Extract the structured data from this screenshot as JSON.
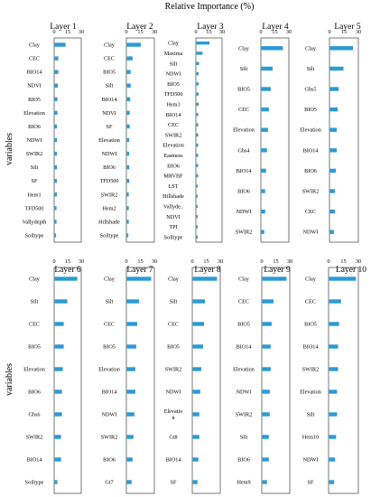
{
  "figure": {
    "top_label": "Relative Importance (%)",
    "y_label": "variables",
    "bar_color": "#2a9bd6"
  },
  "chart_data": [
    {
      "type": "bar",
      "orientation": "horizontal",
      "title": "Layer 1",
      "xlim": [
        0,
        30
      ],
      "xticks": [
        0,
        15,
        30
      ],
      "categories": [
        "Clay",
        "CEC",
        "BIO14",
        "NDVI",
        "BIO5",
        "Elevation",
        "BIO6",
        "NDWI",
        "SWIR2",
        "Silt",
        "SF",
        "Hem1",
        "TFD500",
        "Vallydepth",
        "Soiltype"
      ],
      "values": [
        12,
        4,
        4,
        3.5,
        3,
        3,
        2.5,
        2.5,
        2.5,
        2.5,
        2.5,
        2.5,
        2,
        2,
        1.5
      ]
    },
    {
      "type": "bar",
      "orientation": "horizontal",
      "title": "Layer 2",
      "xlim": [
        0,
        30
      ],
      "xticks": [
        0,
        15,
        30
      ],
      "categories": [
        "Clay",
        "CEC",
        "BIO5",
        "Silt",
        "BIO14",
        "NDVI",
        "SF",
        "Elevation",
        "NDWI",
        "BIO6",
        "TFD500",
        "SWIR2",
        "Hem2",
        "Hillshade",
        "Soiltype"
      ],
      "values": [
        15,
        6,
        4,
        4,
        3.5,
        3,
        3,
        2.5,
        2.5,
        2.5,
        2.5,
        2,
        2,
        2,
        1.5
      ]
    },
    {
      "type": "bar",
      "orientation": "horizontal",
      "title": "Layer 3",
      "xlim": [
        0,
        30
      ],
      "xticks": [
        0,
        15,
        30
      ],
      "categories": [
        "Clay",
        "Maxima",
        "Silt",
        "NDWI",
        "BIO5",
        "TFD500",
        "Hem3",
        "BIO14",
        "CEC",
        "SWIR2",
        "Elevation",
        "Eastness",
        "BIO6",
        "MRVBF",
        "LST",
        "Hillshade",
        "Vallyde..",
        "NDVI",
        "TPI",
        "Soiltype"
      ],
      "values": [
        15,
        7,
        3,
        2.5,
        2.5,
        2.5,
        2.5,
        2,
        2,
        2,
        2,
        2,
        2,
        2,
        1.5,
        1.5,
        1.5,
        1.5,
        1.5,
        1.5
      ]
    },
    {
      "type": "bar",
      "orientation": "horizontal",
      "title": "Layer 4",
      "xlim": [
        0,
        30
      ],
      "xticks": [
        0,
        15,
        30
      ],
      "categories": [
        "Clay",
        "Silt",
        "BIO5",
        "CEC",
        "Elevation",
        "Gbs4",
        "BIO14",
        "BIO6",
        "NDWI",
        "SWIR2"
      ],
      "values": [
        23,
        12,
        10,
        8,
        7,
        6,
        5,
        4,
        4,
        3
      ]
    },
    {
      "type": "bar",
      "orientation": "horizontal",
      "title": "Layer 5",
      "xlim": [
        0,
        30
      ],
      "xticks": [
        0,
        15,
        30
      ],
      "categories": [
        "Clay",
        "Silt",
        "Gbs5",
        "BIO5",
        "Elevation",
        "BIO14",
        "BIO6",
        "SWIR2",
        "CEC",
        "NDWI"
      ],
      "values": [
        24,
        14,
        9,
        8,
        7,
        7,
        6,
        5,
        5,
        4
      ]
    },
    {
      "type": "bar",
      "orientation": "horizontal",
      "title": "Layer 6",
      "xlim": [
        0,
        30
      ],
      "xticks": [
        0,
        15,
        30
      ],
      "categories": [
        "Clay",
        "Silt",
        "CEC",
        "BIO5",
        "Elevation",
        "BIO6",
        "Gbs6",
        "SWIR2",
        "BIO14",
        "Soiltype"
      ],
      "values": [
        25,
        14,
        10,
        10,
        9,
        8,
        8,
        7,
        7,
        3
      ]
    },
    {
      "type": "bar",
      "orientation": "horizontal",
      "title": "Layer 7",
      "xlim": [
        0,
        30
      ],
      "xticks": [
        0,
        15,
        30
      ],
      "categories": [
        "Clay",
        "Silt",
        "CEC",
        "BIO5",
        "Elevation",
        "BIO14",
        "NDWI",
        "SWIR2",
        "BIO6",
        "Gt7"
      ],
      "values": [
        26,
        13,
        11,
        10,
        9,
        9,
        8,
        7,
        6,
        5
      ]
    },
    {
      "type": "bar",
      "orientation": "horizontal",
      "title": "Layer 8",
      "xlim": [
        0,
        30
      ],
      "xticks": [
        0,
        15,
        30
      ],
      "categories": [
        "Clay",
        "Silt",
        "CEC",
        "BIO5",
        "SWIR2",
        "NDWI",
        "Elevatio\nn",
        "Gt8",
        "BIO14",
        "SF"
      ],
      "values": [
        26,
        13,
        12,
        11,
        9,
        8,
        7,
        7,
        6,
        5
      ]
    },
    {
      "type": "bar",
      "orientation": "horizontal",
      "title": "Layer 9",
      "xlim": [
        0,
        30
      ],
      "xticks": [
        0,
        15,
        30
      ],
      "categories": [
        "Clay",
        "CEC",
        "BIO5",
        "BIO14",
        "Elevation",
        "NDWI",
        "SWIR2",
        "Silt",
        "BIO6",
        "Hem9"
      ],
      "values": [
        26,
        12,
        10,
        9,
        9,
        8,
        8,
        7,
        7,
        5
      ]
    },
    {
      "type": "bar",
      "orientation": "horizontal",
      "title": "Layer 10",
      "xlim": [
        0,
        30
      ],
      "xticks": [
        0,
        15,
        30
      ],
      "categories": [
        "Clay",
        "CEC",
        "BIO5",
        "BIO14",
        "SWIR2",
        "Elevation",
        "Silt",
        "Hem10",
        "NDWI",
        "SF"
      ],
      "values": [
        27,
        12,
        10,
        9,
        9,
        8,
        8,
        7,
        6,
        5
      ]
    }
  ]
}
